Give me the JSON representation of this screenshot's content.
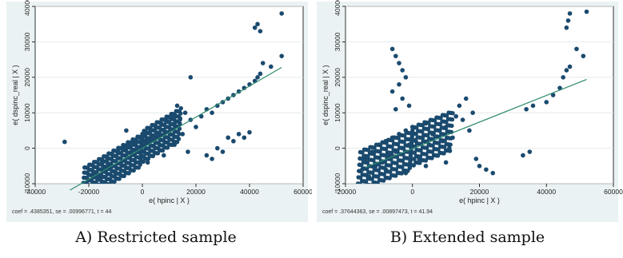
{
  "chart_data": [
    {
      "type": "scatter",
      "caption": "A) Restricted sample",
      "xlabel": "e( hpinc | X )",
      "ylabel": "e( dspinc_real | X )",
      "xlim": [
        -40000,
        60000
      ],
      "ylim": [
        -10000,
        40000
      ],
      "xticks": [
        -40000,
        -20000,
        0,
        20000,
        40000,
        60000
      ],
      "yticks": [
        -10000,
        0,
        10000,
        20000,
        30000,
        40000
      ],
      "xtick_labels": [
        "-40000",
        "-20000",
        "0",
        "20000",
        "40000",
        "60000"
      ],
      "ytick_labels": [
        "-10000",
        "0",
        "10000",
        "20000",
        "30000",
        "40000"
      ],
      "coef": 0.4385351,
      "note": "coef = .4385351, se = .00996771, t = 44",
      "fit_line": {
        "x": [
          -27000,
          52000
        ],
        "y": [
          -11800,
          22800
        ]
      },
      "points": [
        {
          "x": -29000,
          "y": 1800
        },
        {
          "x": -24000,
          "y": -11000
        },
        {
          "x": -20000,
          "y": -9000
        },
        {
          "x": -18000,
          "y": -7000
        },
        {
          "x": -16000,
          "y": -8000
        },
        {
          "x": -15000,
          "y": -4000
        },
        {
          "x": -14000,
          "y": -6000
        },
        {
          "x": -13000,
          "y": -3000
        },
        {
          "x": -12000,
          "y": -5000
        },
        {
          "x": -11000,
          "y": -2000
        },
        {
          "x": -10000,
          "y": -7000
        },
        {
          "x": -9000,
          "y": -1000
        },
        {
          "x": -8000,
          "y": -4000
        },
        {
          "x": -7000,
          "y": 0
        },
        {
          "x": -6000,
          "y": -2000
        },
        {
          "x": -5000,
          "y": 1000
        },
        {
          "x": -4000,
          "y": -1000
        },
        {
          "x": -3000,
          "y": 2000
        },
        {
          "x": -2000,
          "y": 0
        },
        {
          "x": -1000,
          "y": 3000
        },
        {
          "x": 0,
          "y": 1000
        },
        {
          "x": 1000,
          "y": 4000
        },
        {
          "x": 2000,
          "y": 2000
        },
        {
          "x": 3000,
          "y": 5000
        },
        {
          "x": 4000,
          "y": 3000
        },
        {
          "x": 5000,
          "y": 6000
        },
        {
          "x": 6000,
          "y": 4000
        },
        {
          "x": 7000,
          "y": 7000
        },
        {
          "x": 8000,
          "y": 5000
        },
        {
          "x": 9000,
          "y": 8000
        },
        {
          "x": 10000,
          "y": 6000
        },
        {
          "x": 11000,
          "y": 9000
        },
        {
          "x": 12000,
          "y": 7000
        },
        {
          "x": 13000,
          "y": 12000
        },
        {
          "x": 14000,
          "y": 8000
        },
        {
          "x": 15000,
          "y": 4000
        },
        {
          "x": 16000,
          "y": 10000
        },
        {
          "x": 18000,
          "y": 8000
        },
        {
          "x": 20000,
          "y": 6000
        },
        {
          "x": 22000,
          "y": 9000
        },
        {
          "x": 24000,
          "y": 11000
        },
        {
          "x": 26000,
          "y": 10000
        },
        {
          "x": 28000,
          "y": 12000
        },
        {
          "x": 30000,
          "y": 13000
        },
        {
          "x": 32000,
          "y": 14000
        },
        {
          "x": 34000,
          "y": 15000
        },
        {
          "x": 36000,
          "y": 16000
        },
        {
          "x": 38000,
          "y": 17000
        },
        {
          "x": 24000,
          "y": -2000
        },
        {
          "x": 26000,
          "y": -3000
        },
        {
          "x": 28000,
          "y": 0
        },
        {
          "x": 30000,
          "y": -1000
        },
        {
          "x": 32000,
          "y": 3000
        },
        {
          "x": 34000,
          "y": 2000
        },
        {
          "x": 36000,
          "y": 4000
        },
        {
          "x": 38000,
          "y": 3000
        },
        {
          "x": 40000,
          "y": 4500
        },
        {
          "x": 18000,
          "y": 20000
        },
        {
          "x": 17000,
          "y": -1000
        },
        {
          "x": -15000,
          "y": -12000
        },
        {
          "x": -6000,
          "y": 5000
        },
        {
          "x": 2000,
          "y": -4000
        },
        {
          "x": 8000,
          "y": -2000
        },
        {
          "x": 12000,
          "y": 1000
        },
        {
          "x": 40000,
          "y": 18000
        },
        {
          "x": 42000,
          "y": 19000
        },
        {
          "x": 43000,
          "y": 20000
        },
        {
          "x": 44000,
          "y": 21000
        },
        {
          "x": 45000,
          "y": 24000
        },
        {
          "x": 48000,
          "y": 23000
        },
        {
          "x": 52000,
          "y": 26000
        },
        {
          "x": 42000,
          "y": 34000
        },
        {
          "x": 43000,
          "y": 35000
        },
        {
          "x": 44000,
          "y": 33000
        },
        {
          "x": 52000,
          "y": 38000
        }
      ]
    },
    {
      "type": "scatter",
      "caption": "B) Extended sample",
      "xlabel": "e( hpinc | X )",
      "ylabel": "e( dspinc_real | X )",
      "xlim": [
        -20000,
        60000
      ],
      "ylim": [
        -10000,
        40000
      ],
      "xticks": [
        -20000,
        0,
        20000,
        40000,
        60000
      ],
      "yticks": [
        -10000,
        0,
        10000,
        20000,
        30000,
        40000
      ],
      "xtick_labels": [
        "-20000",
        "0",
        "20000",
        "40000",
        "60000"
      ],
      "ytick_labels": [
        "-10000",
        "0",
        "10000",
        "20000",
        "30000",
        "40000"
      ],
      "coef": 0.37644363,
      "note": "coef = .37644363, se = .00897473, t = 41.94",
      "fit_line": {
        "x": [
          -14000,
          52000
        ],
        "y": [
          -5400,
          19400
        ]
      },
      "points": [
        {
          "x": -15000,
          "y": -6000
        },
        {
          "x": -14000,
          "y": -3000
        },
        {
          "x": -13000,
          "y": -8000
        },
        {
          "x": -12000,
          "y": -1000
        },
        {
          "x": -11000,
          "y": -5000
        },
        {
          "x": -10000,
          "y": 1000
        },
        {
          "x": -9000,
          "y": -4000
        },
        {
          "x": -8000,
          "y": 2000
        },
        {
          "x": -7000,
          "y": -2000
        },
        {
          "x": -6000,
          "y": 3000
        },
        {
          "x": -5000,
          "y": -1000
        },
        {
          "x": -4000,
          "y": 4000
        },
        {
          "x": -3000,
          "y": 0
        },
        {
          "x": -2000,
          "y": 5000
        },
        {
          "x": -1000,
          "y": 1000
        },
        {
          "x": 0,
          "y": 6000
        },
        {
          "x": 1000,
          "y": 2000
        },
        {
          "x": 2000,
          "y": -3000
        },
        {
          "x": 3000,
          "y": 3000
        },
        {
          "x": 4000,
          "y": 7000
        },
        {
          "x": 5000,
          "y": 1000
        },
        {
          "x": 6000,
          "y": 4000
        },
        {
          "x": 7000,
          "y": -2000
        },
        {
          "x": 8000,
          "y": 5000
        },
        {
          "x": 9000,
          "y": 2000
        },
        {
          "x": 10000,
          "y": 6000
        },
        {
          "x": 11000,
          "y": 0
        },
        {
          "x": 12000,
          "y": 3000
        },
        {
          "x": 13000,
          "y": 9000
        },
        {
          "x": 14000,
          "y": 12000
        },
        {
          "x": 15000,
          "y": 8000
        },
        {
          "x": 16000,
          "y": 14000
        },
        {
          "x": 17000,
          "y": 5000
        },
        {
          "x": 18000,
          "y": 10000
        },
        {
          "x": 19000,
          "y": -3000
        },
        {
          "x": 20000,
          "y": -5000
        },
        {
          "x": 22000,
          "y": -6000
        },
        {
          "x": 24000,
          "y": -7000
        },
        {
          "x": -6000,
          "y": 28000
        },
        {
          "x": -5000,
          "y": 26000
        },
        {
          "x": -4000,
          "y": 24000
        },
        {
          "x": -3000,
          "y": 22000
        },
        {
          "x": -2000,
          "y": 20000
        },
        {
          "x": -4000,
          "y": 18000
        },
        {
          "x": -6000,
          "y": 16000
        },
        {
          "x": -3000,
          "y": 14000
        },
        {
          "x": -1000,
          "y": 12000
        },
        {
          "x": -5000,
          "y": 11000
        },
        {
          "x": 33000,
          "y": -2000
        },
        {
          "x": 35000,
          "y": -1000
        },
        {
          "x": 34000,
          "y": 11000
        },
        {
          "x": 36000,
          "y": 12000
        },
        {
          "x": 40000,
          "y": 13000
        },
        {
          "x": 42000,
          "y": 15000
        },
        {
          "x": 44000,
          "y": 17000
        },
        {
          "x": 45000,
          "y": 20000
        },
        {
          "x": 46000,
          "y": 22000
        },
        {
          "x": 47000,
          "y": 23000
        },
        {
          "x": 49000,
          "y": 28000
        },
        {
          "x": 51000,
          "y": 26000
        },
        {
          "x": 46000,
          "y": 34000
        },
        {
          "x": 46500,
          "y": 36000
        },
        {
          "x": 47000,
          "y": 38000
        },
        {
          "x": 52000,
          "y": 38500
        },
        {
          "x": -8000,
          "y": -6000
        },
        {
          "x": -2000,
          "y": -7000
        },
        {
          "x": 4000,
          "y": -5000
        },
        {
          "x": 10000,
          "y": -4000
        }
      ]
    }
  ]
}
